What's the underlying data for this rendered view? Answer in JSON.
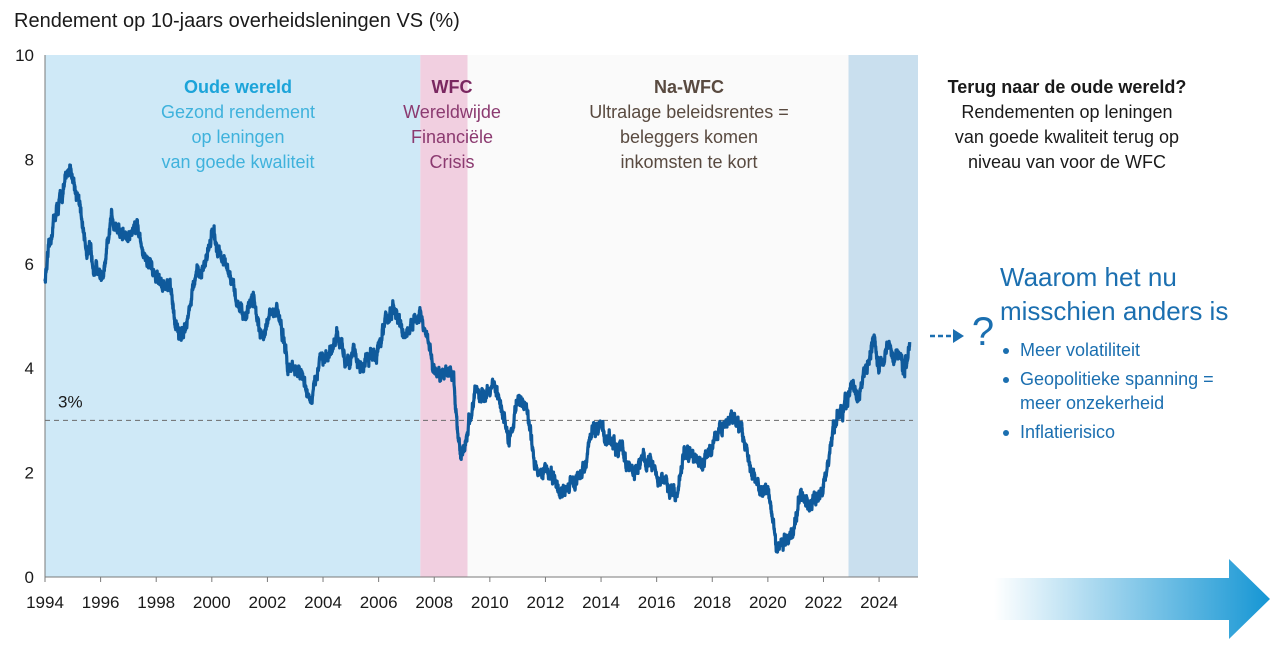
{
  "chart_data": {
    "type": "line",
    "title": "Rendement op 10-jaars overheidsleningen VS (%)",
    "xlabel": "",
    "ylabel": "",
    "xlim": [
      1994,
      2025.4
    ],
    "ylim": [
      0,
      10
    ],
    "y_ticks": [
      "0",
      "2",
      "4",
      "6",
      "8",
      "10"
    ],
    "x_ticks": [
      "1994",
      "1996",
      "1998",
      "2000",
      "2002",
      "2004",
      "2006",
      "2008",
      "2010",
      "2012",
      "2014",
      "2016",
      "2018",
      "2020",
      "2022",
      "2024"
    ],
    "reference_line": {
      "value": 3,
      "label": "3%"
    },
    "series": [
      {
        "name": "Rendement op 10-jaars overheidsleningen VS",
        "color": "#0f5a9c",
        "x": [
          1994.0,
          1994.3,
          1994.6,
          1994.9,
          1995.2,
          1995.5,
          1995.8,
          1996.1,
          1996.4,
          1996.7,
          1997.0,
          1997.3,
          1997.6,
          1997.9,
          1998.2,
          1998.5,
          1998.8,
          1999.1,
          1999.4,
          1999.7,
          2000.0,
          2000.3,
          2000.6,
          2000.9,
          2001.2,
          2001.5,
          2001.8,
          2002.1,
          2002.4,
          2002.7,
          2003.0,
          2003.3,
          2003.6,
          2003.9,
          2004.2,
          2004.5,
          2004.8,
          2005.1,
          2005.4,
          2005.7,
          2006.0,
          2006.3,
          2006.6,
          2006.9,
          2007.2,
          2007.5,
          2007.8,
          2008.1,
          2008.4,
          2008.7,
          2008.95,
          2009.2,
          2009.5,
          2009.8,
          2010.1,
          2010.4,
          2010.7,
          2011.0,
          2011.3,
          2011.6,
          2011.9,
          2012.2,
          2012.5,
          2012.8,
          2013.1,
          2013.4,
          2013.7,
          2014.0,
          2014.3,
          2014.6,
          2014.9,
          2015.2,
          2015.5,
          2015.8,
          2016.1,
          2016.4,
          2016.7,
          2017.0,
          2017.3,
          2017.6,
          2017.9,
          2018.2,
          2018.5,
          2018.8,
          2019.1,
          2019.4,
          2019.7,
          2020.0,
          2020.3,
          2020.6,
          2020.9,
          2021.2,
          2021.5,
          2021.8,
          2022.1,
          2022.4,
          2022.7,
          2023.0,
          2023.3,
          2023.6,
          2023.8,
          2024.0,
          2024.3,
          2024.6,
          2024.9,
          2025.1
        ],
        "values": [
          5.7,
          6.8,
          7.3,
          7.9,
          7.2,
          6.3,
          6.0,
          5.7,
          6.9,
          6.6,
          6.5,
          6.8,
          6.1,
          5.8,
          5.6,
          5.5,
          4.6,
          4.9,
          5.7,
          5.9,
          6.6,
          6.2,
          5.8,
          5.3,
          5.0,
          5.4,
          4.6,
          5.0,
          5.1,
          4.1,
          4.0,
          3.8,
          3.3,
          4.3,
          4.1,
          4.6,
          4.2,
          4.3,
          4.0,
          4.2,
          4.4,
          5.0,
          5.1,
          4.6,
          4.8,
          5.0,
          4.4,
          3.8,
          4.0,
          3.8,
          2.2,
          2.8,
          3.6,
          3.4,
          3.7,
          3.3,
          2.6,
          3.4,
          3.3,
          2.2,
          2.0,
          2.0,
          1.6,
          1.7,
          1.9,
          2.1,
          2.8,
          2.9,
          2.6,
          2.5,
          2.2,
          2.0,
          2.3,
          2.2,
          1.9,
          1.7,
          1.6,
          2.4,
          2.3,
          2.2,
          2.4,
          2.8,
          2.9,
          3.1,
          2.7,
          2.1,
          1.6,
          1.8,
          0.7,
          0.6,
          0.9,
          1.6,
          1.4,
          1.5,
          1.9,
          2.9,
          3.2,
          3.6,
          3.5,
          4.1,
          4.6,
          4.0,
          4.4,
          4.3,
          4.0,
          4.5
        ]
      }
    ],
    "regions": [
      {
        "name": "Oude wereld",
        "x0": 1994.0,
        "x1": 2007.5,
        "color": "#cfe9f7"
      },
      {
        "name": "WFC",
        "x0": 2007.5,
        "x1": 2009.2,
        "color": "#f1cfe0"
      },
      {
        "name": "Na-WFC",
        "x0": 2009.2,
        "x1": 2022.9,
        "color": "#fafafa"
      },
      {
        "name": "Terug naar de oude wereld?",
        "x0": 2022.9,
        "x1": 2025.4,
        "color": "#c9dfee"
      }
    ],
    "annotations": {
      "old_world": {
        "title": "Oude wereld",
        "lines": [
          "Gezond rendement",
          "op leningen",
          "van goede kwaliteit"
        ],
        "title_color": "#1ca4d9",
        "text_color": "#3fb2dc"
      },
      "gfc": {
        "title": "WFC",
        "lines": [
          "Wereldwijde",
          "Financiële",
          "Crisis"
        ],
        "title_color": "#7a2760",
        "text_color": "#8b3a70"
      },
      "post_gfc": {
        "title": "Na-WFC",
        "lines": [
          "Ultralage beleidsrentes =",
          "beleggers komen",
          "inkomsten te kort"
        ],
        "title_color": "#594a40",
        "text_color": "#594a40"
      },
      "back": {
        "title": "Terug naar de oude wereld?",
        "lines": [
          "Rendementen op leningen",
          "van goede kwaliteit terug op",
          "niveau van voor de WFC"
        ],
        "title_color": "#1a1a1a",
        "text_color": "#1a1a1a"
      }
    },
    "sidebar": {
      "heading": [
        "Waarom het nu",
        "misschien anders is"
      ],
      "question_mark": "?",
      "bullets": [
        "Meer volatiliteit",
        "Geopolitieke spanning = meer onzekerheid",
        "Inflatierisico"
      ],
      "bullet_lines": [
        [
          "Meer volatiliteit"
        ],
        [
          "Geopolitieke spanning =",
          "meer onzekerheid"
        ],
        [
          "Inflatierisico"
        ]
      ],
      "color": "#1b6fb0"
    }
  }
}
